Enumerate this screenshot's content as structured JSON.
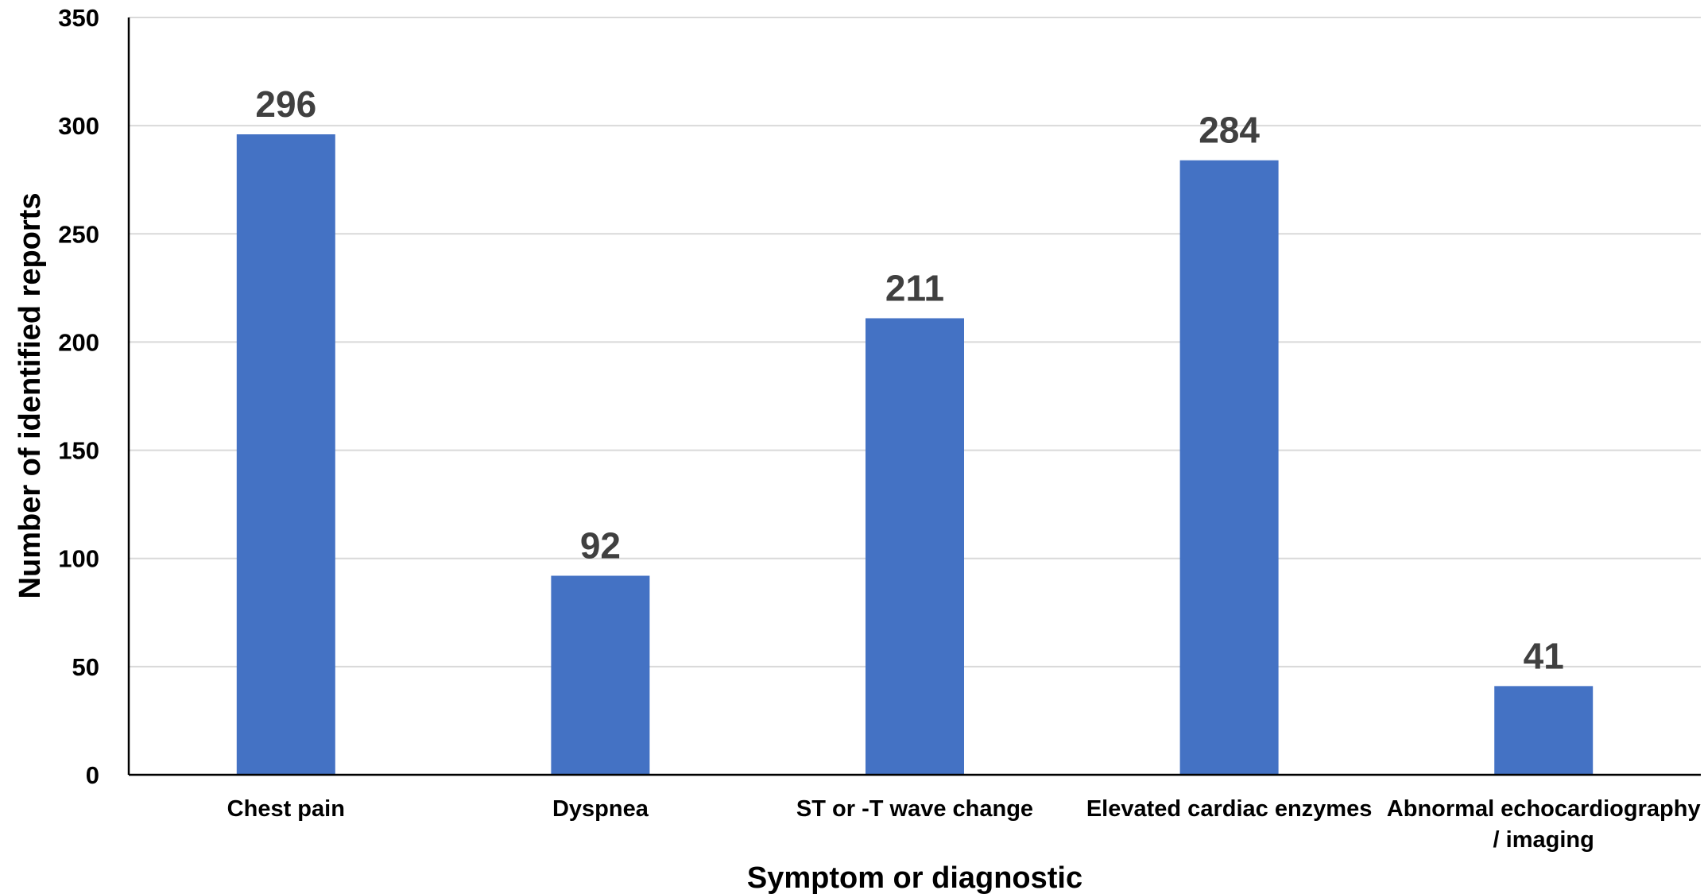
{
  "chart_data": {
    "type": "bar",
    "title": "",
    "xlabel": "Symptom or diagnostic",
    "ylabel": "Number of identified reports",
    "categories": [
      [
        "Chest pain"
      ],
      [
        "Dyspnea"
      ],
      [
        "ST or -T wave change"
      ],
      [
        "Elevated cardiac enzymes"
      ],
      [
        "Abnormal echocardiography",
        "/ imaging"
      ]
    ],
    "values": [
      296,
      92,
      211,
      284,
      41
    ],
    "ylim": [
      0,
      350
    ],
    "yticks": [
      0,
      50,
      100,
      150,
      200,
      250,
      300,
      350
    ],
    "grid": true,
    "legend": "none",
    "bar_color": "#4472c4",
    "data_label_color": "#404040",
    "grid_color": "#d9d9d9"
  }
}
